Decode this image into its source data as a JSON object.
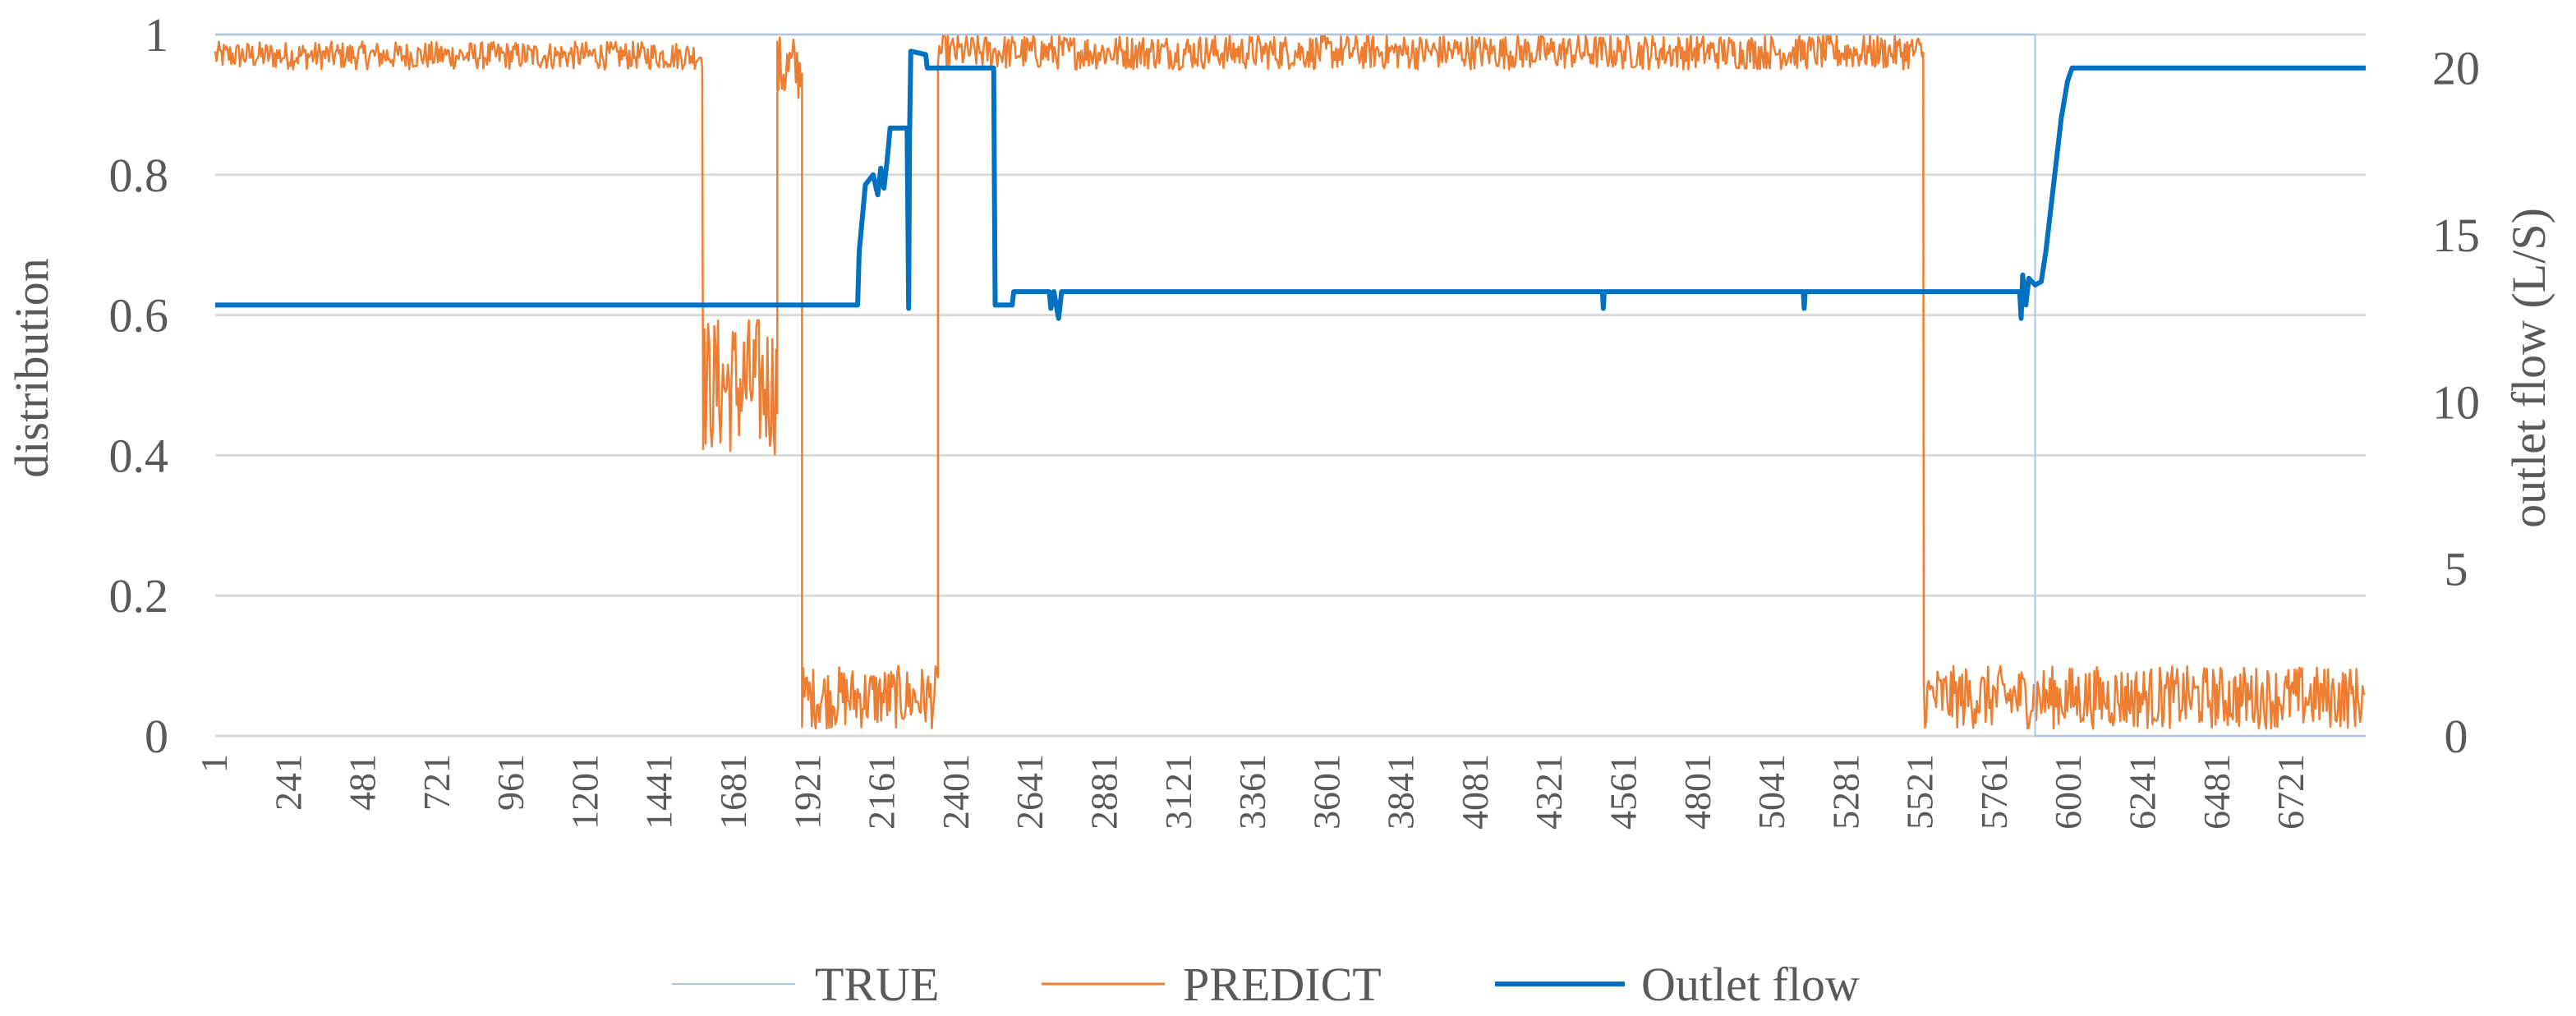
{
  "chart_data": {
    "type": "line",
    "x_tick_labels": [
      "1",
      "241",
      "481",
      "721",
      "961",
      "1201",
      "1441",
      "1681",
      "1921",
      "2161",
      "2401",
      "2641",
      "2881",
      "3121",
      "3361",
      "3601",
      "3841",
      "4081",
      "4321",
      "4561",
      "4801",
      "5041",
      "5281",
      "5521",
      "5761",
      "6001",
      "6241",
      "6481",
      "6721"
    ],
    "x_range": [
      1,
      6960
    ],
    "y_left": {
      "label": "distribution",
      "ticks": [
        "0",
        "0.2",
        "0.4",
        "0.6",
        "0.8",
        "1"
      ],
      "range": [
        0,
        1
      ]
    },
    "y_right": {
      "label": "outlet flow (L/S)",
      "ticks": [
        "0",
        "5",
        "10",
        "15",
        "20"
      ],
      "range": [
        0,
        21
      ]
    },
    "grid": "horizontal",
    "legend_position": "bottom",
    "legend": [
      "TRUE",
      "PREDICT",
      "Outlet flow"
    ],
    "colors": {
      "true": "#a9c4e6",
      "predict": "#ed7d31",
      "outlet": "#0070c0",
      "grid": "#d9d9d9",
      "text": "#595959"
    },
    "series": [
      {
        "name": "TRUE",
        "axis": "left",
        "style": "step",
        "points": [
          [
            1,
            1
          ],
          [
            5890,
            1
          ],
          [
            5890,
            0
          ],
          [
            6960,
            0
          ]
        ]
      },
      {
        "name": "PREDICT",
        "axis": "left",
        "style": "noisy-band",
        "segments": [
          {
            "x": [
              1,
              1580
            ],
            "low": 0.95,
            "high": 0.99
          },
          {
            "x": [
              1580,
              1820
            ],
            "low": 0.4,
            "high": 0.6
          },
          {
            "x": [
              1820,
              1900
            ],
            "low": 0.9,
            "high": 1.0
          },
          {
            "x": [
              1900,
              2340
            ],
            "low": 0.01,
            "high": 0.1
          },
          {
            "x": [
              2340,
              5530
            ],
            "low": 0.95,
            "high": 1.0
          },
          {
            "x": [
              5530,
              6960
            ],
            "low": 0.01,
            "high": 0.1
          }
        ]
      },
      {
        "name": "Outlet flow",
        "axis": "right",
        "style": "line",
        "points": [
          [
            1,
            12.9
          ],
          [
            2080,
            12.9
          ],
          [
            2085,
            14.5
          ],
          [
            2105,
            16.5
          ],
          [
            2130,
            16.8
          ],
          [
            2145,
            16.2
          ],
          [
            2155,
            17.0
          ],
          [
            2165,
            16.4
          ],
          [
            2175,
            17.2
          ],
          [
            2185,
            18.2
          ],
          [
            2240,
            18.2
          ],
          [
            2242,
            16.0
          ],
          [
            2245,
            12.8
          ],
          [
            2248,
            18.0
          ],
          [
            2252,
            20.5
          ],
          [
            2300,
            20.4
          ],
          [
            2305,
            20.0
          ],
          [
            2520,
            20.0
          ],
          [
            2525,
            12.9
          ],
          [
            2580,
            12.9
          ],
          [
            2585,
            13.3
          ],
          [
            2700,
            13.3
          ],
          [
            2705,
            12.8
          ],
          [
            2715,
            13.3
          ],
          [
            2730,
            12.5
          ],
          [
            2740,
            13.3
          ],
          [
            4490,
            13.3
          ],
          [
            4493,
            12.8
          ],
          [
            4496,
            13.3
          ],
          [
            5140,
            13.3
          ],
          [
            5143,
            12.8
          ],
          [
            5146,
            13.3
          ],
          [
            5840,
            13.3
          ],
          [
            5845,
            12.5
          ],
          [
            5850,
            13.8
          ],
          [
            5860,
            12.9
          ],
          [
            5870,
            13.7
          ],
          [
            5890,
            13.5
          ],
          [
            5910,
            13.6
          ],
          [
            5925,
            14.5
          ],
          [
            5950,
            16.5
          ],
          [
            5975,
            18.5
          ],
          [
            5995,
            19.6
          ],
          [
            6010,
            20.0
          ],
          [
            6960,
            20.0
          ]
        ]
      }
    ]
  }
}
